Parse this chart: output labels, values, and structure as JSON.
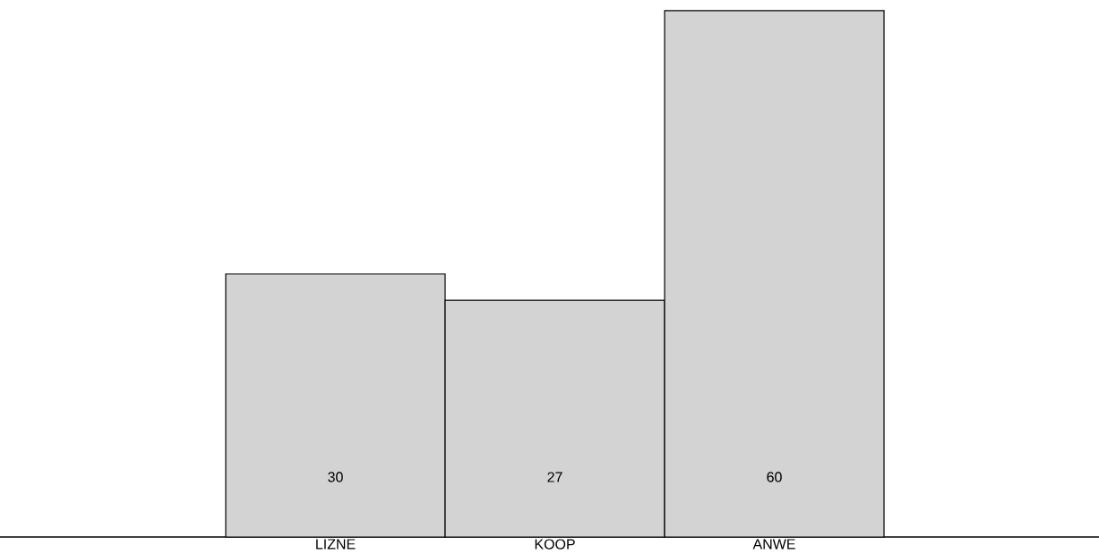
{
  "chart_data": {
    "type": "bar",
    "categories": [
      "LIZNE",
      "KOOP",
      "ANWE"
    ],
    "values": [
      30,
      27,
      60
    ],
    "color": "#d3d3d3",
    "data_labels": true
  }
}
